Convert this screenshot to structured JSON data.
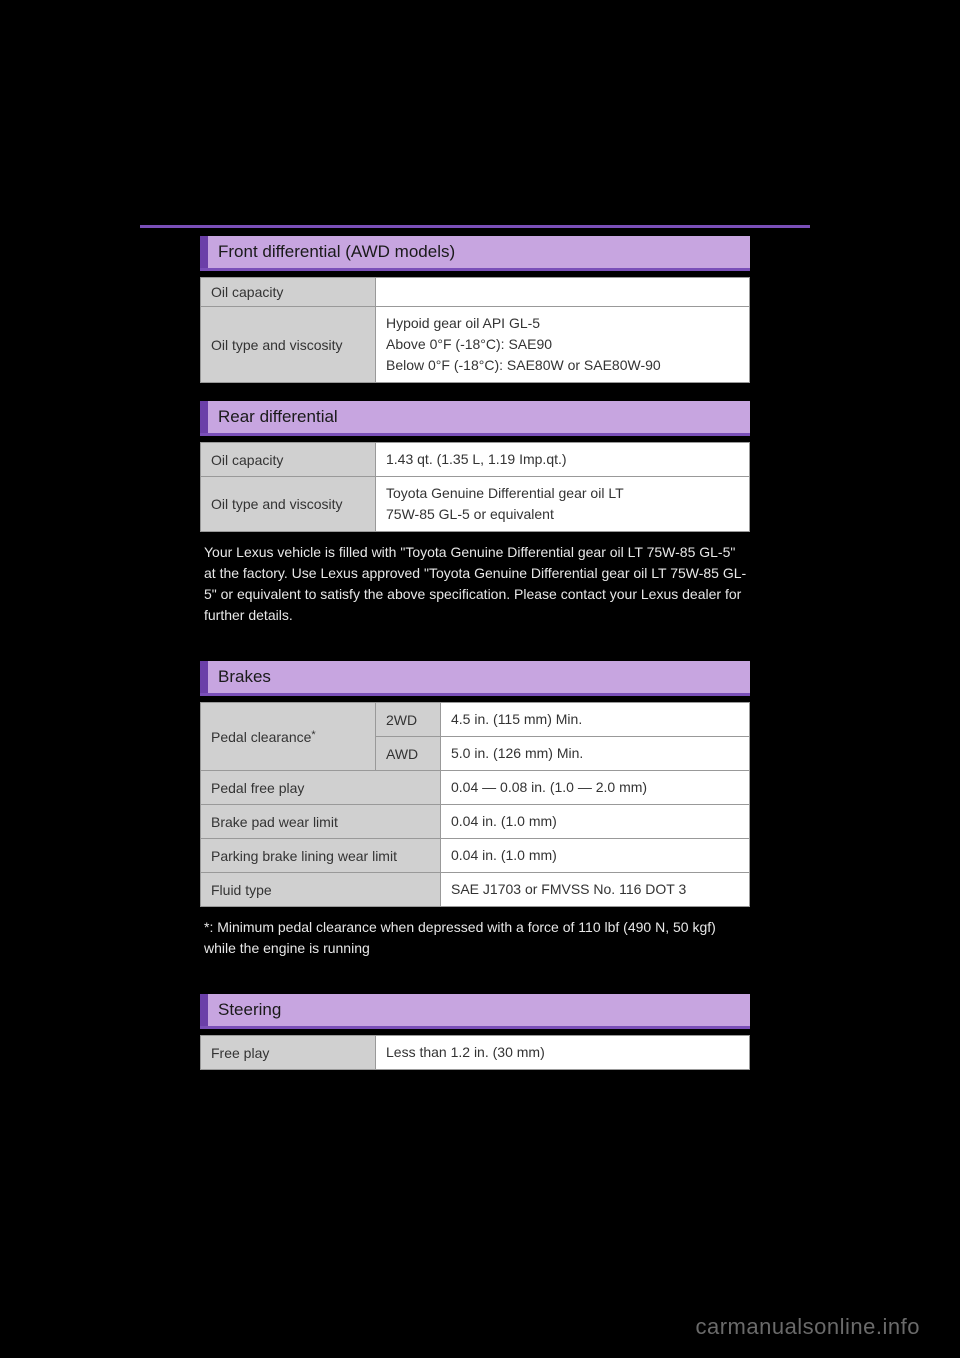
{
  "front_diff": {
    "title": "Front differential (AWD models)",
    "rows": {
      "oil_capacity": {
        "label": "Oil capacity",
        "value": ""
      },
      "oil_type": {
        "label": "Oil type and viscosity",
        "line1": "Hypoid gear oil API GL-5",
        "line2": "Above 0°F (-18°C): SAE90",
        "line3": "Below 0°F (-18°C): SAE80W or SAE80W-90"
      }
    }
  },
  "rear_diff": {
    "title": "Rear differential",
    "rows": {
      "oil_capacity": {
        "label": "Oil capacity",
        "value": "1.43 qt. (1.35 L, 1.19 Imp.qt.)"
      },
      "oil_type": {
        "label": "Oil type and viscosity",
        "line1": "Toyota Genuine Differential gear oil LT",
        "line2": "75W-85 GL-5 or equivalent"
      }
    },
    "note": "Your Lexus vehicle is filled with \"Toyota Genuine Differential gear oil LT 75W-85 GL-5\" at the factory. Use Lexus approved \"Toyota Genuine Differential gear oil LT 75W-85 GL-5\" or equivalent to satisfy the above specification. Please contact your Lexus dealer for further details."
  },
  "brakes": {
    "title": "Brakes",
    "rows": {
      "pedal_clearance": {
        "label": "Pedal clearance",
        "star": "*",
        "sub1": {
          "label": "2WD",
          "value": "4.5 in. (115 mm) Min."
        },
        "sub2": {
          "label": "AWD",
          "value": "5.0 in. (126 mm) Min."
        }
      },
      "pedal_free_play": {
        "label": "Pedal free play",
        "value": "0.04 — 0.08 in. (1.0 — 2.0 mm)"
      },
      "brake_pad": {
        "label": "Brake pad wear limit",
        "value": "0.04 in. (1.0 mm)"
      },
      "parking_brake": {
        "label": "Parking brake lining wear limit",
        "value": "0.04 in. (1.0 mm)"
      },
      "fluid_type": {
        "label": "Fluid type",
        "value": "SAE J1703 or FMVSS No. 116 DOT 3"
      }
    },
    "note": "*: Minimum pedal clearance when depressed with a force of 110 lbf (490 N, 50 kgf) while the engine is running"
  },
  "steering": {
    "title": "Steering",
    "rows": {
      "free_play": {
        "label": "Free play",
        "value": "Less than 1.2 in. (30 mm)"
      }
    }
  },
  "watermark": "carmanualsonline.info",
  "colors": {
    "header_bg": "#c7a5e0",
    "header_accent": "#6b3fa8",
    "underline": "#7a4fb8",
    "label_bg": "#d0d0d0",
    "value_bg": "#ffffff",
    "page_bg": "#000000"
  }
}
